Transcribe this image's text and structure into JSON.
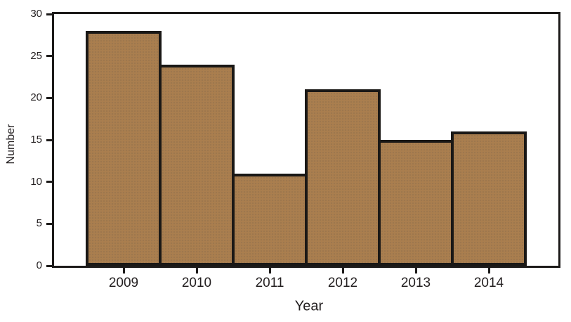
{
  "chart_data": {
    "type": "bar",
    "title": "",
    "xlabel": "Year",
    "ylabel": "Number",
    "categories": [
      "2009",
      "2010",
      "2011",
      "2012",
      "2013",
      "2014"
    ],
    "values": [
      28,
      24,
      11,
      21,
      15,
      16
    ],
    "ylim": [
      0,
      30
    ],
    "yticks": [
      0,
      5,
      10,
      15,
      20,
      25,
      30
    ],
    "grid": false,
    "legend": false,
    "bar_fill_color": "#a87e50",
    "bar_border_color": "#1a1816",
    "axis_color": "#1d1b1a",
    "text_color": "#231f20",
    "background_color": "#ffffff"
  }
}
